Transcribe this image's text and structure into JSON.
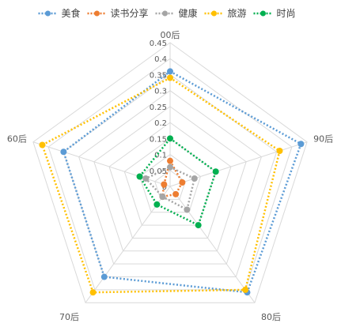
{
  "chart_data": {
    "type": "radar",
    "categories": [
      "00后",
      "90后",
      "80后",
      "70后",
      "60后"
    ],
    "rmin": 0,
    "rmax": 0.45,
    "ticks": [
      "0",
      "0.05",
      "0.1",
      "0.15",
      "0.2",
      "0.25",
      "0.3",
      "0.35",
      "0.4",
      "0.45"
    ],
    "legend_position": "top",
    "grid": true,
    "series": [
      {
        "name": "美食",
        "color": "#5B9BD5",
        "values": [
          0.36,
          0.43,
          0.41,
          0.35,
          0.35
        ]
      },
      {
        "name": "读书分享",
        "color": "#ED7D31",
        "values": [
          0.08,
          0.04,
          0.03,
          0.04,
          0.02
        ]
      },
      {
        "name": "健康",
        "color": "#A5A5A5",
        "values": [
          0.06,
          0.08,
          0.09,
          0.04,
          0.08
        ]
      },
      {
        "name": "旅游",
        "color": "#FFC000",
        "values": [
          0.34,
          0.36,
          0.4,
          0.41,
          0.42
        ]
      },
      {
        "name": "时尚",
        "color": "#00B050",
        "values": [
          0.15,
          0.15,
          0.15,
          0.07,
          0.1
        ]
      }
    ]
  }
}
